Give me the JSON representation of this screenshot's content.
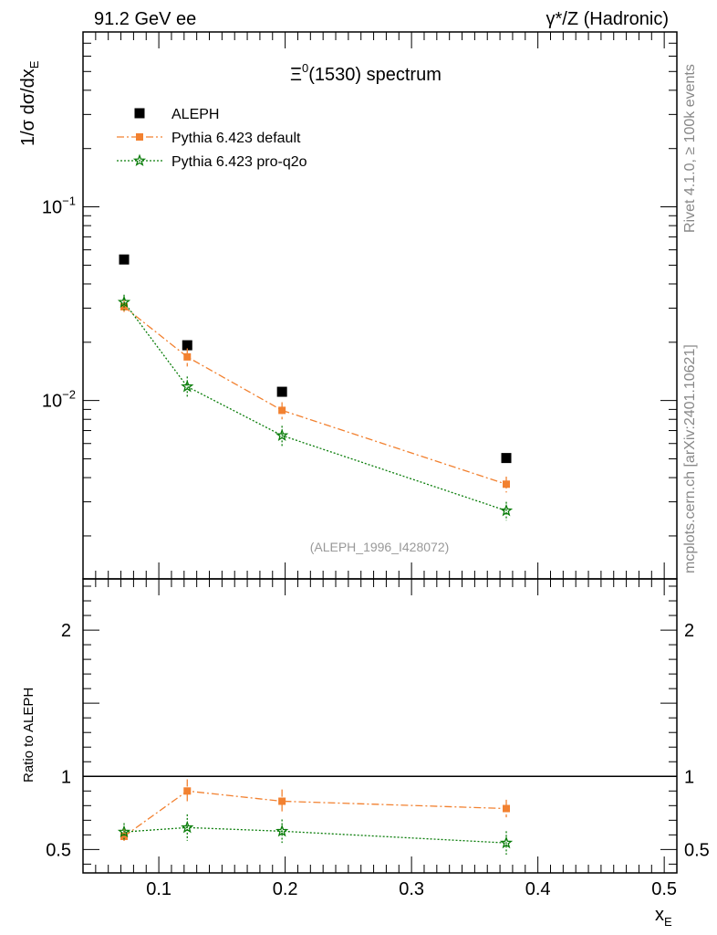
{
  "header": {
    "left": "91.2 GeV ee",
    "right": "γ*/Z (Hadronic)"
  },
  "side_labels": {
    "rivet": "Rivet 4.1.0, ≥ 100k events",
    "mcplots": "mcplots.cern.ch [arXiv:2401.10621]"
  },
  "colors": {
    "aleph": "#000000",
    "default": "#f28130",
    "proq2o": "#0a7d0a",
    "axis": "#000000"
  },
  "chart_data": [
    {
      "type": "scatter",
      "panel": "main",
      "title": "Ξ⁰(1530) spectrum",
      "title_parts": {
        "symbol": "Ξ",
        "sup": "0",
        "rest": "(1530) spectrum"
      },
      "xlabel": "x_E",
      "ylabel": "1/σ dσ/dx_E",
      "yscale": "log",
      "xlim": [
        0.04,
        0.51
      ],
      "ylim": [
        0.0012,
        0.8
      ],
      "y_ticks": [
        {
          "value": 0.1,
          "base": "10",
          "exp": "−1"
        },
        {
          "value": 0.01,
          "base": "10",
          "exp": "−2"
        }
      ],
      "analysis_id": "(ALEPH_1996_I428072)",
      "legend": {
        "placement": "top-left",
        "entries": [
          "ALEPH",
          "Pythia 6.423 default",
          "Pythia 6.423 pro-q2o"
        ]
      },
      "series": [
        {
          "name": "ALEPH",
          "marker": "square",
          "line": "none",
          "x": [
            0.0725,
            0.1225,
            0.1975,
            0.375
          ],
          "y": [
            0.0535,
            0.0193,
            0.0111,
            0.00505
          ],
          "yerr": [
            0.0015,
            0.0006,
            0.0004,
            0.0002
          ]
        },
        {
          "name": "Pythia 6.423 default",
          "marker": "square",
          "line": "dashdot",
          "x": [
            0.0725,
            0.1225,
            0.1975,
            0.375
          ],
          "y": [
            0.0305,
            0.0168,
            0.0089,
            0.0037
          ],
          "yerr": [
            0.0025,
            0.0018,
            0.0009,
            0.00035
          ]
        },
        {
          "name": "Pythia 6.423 pro-q2o",
          "marker": "star",
          "line": "dotted",
          "x": [
            0.0725,
            0.1225,
            0.1975,
            0.375
          ],
          "y": [
            0.0322,
            0.0118,
            0.0066,
            0.0027
          ],
          "yerr": [
            0.003,
            0.0015,
            0.0008,
            0.0003
          ]
        }
      ]
    },
    {
      "type": "scatter",
      "panel": "ratio",
      "ylabel": "Ratio to ALEPH",
      "xlabel": "x_E",
      "xlim": [
        0.04,
        0.51
      ],
      "ylim": [
        0.34,
        2.35
      ],
      "y_ticks": [
        0.5,
        1,
        2
      ],
      "y_tick_labels": [
        "0.5",
        "1",
        "2"
      ],
      "x_ticks": [
        0.1,
        0.2,
        0.3,
        0.4,
        0.5
      ],
      "x_tick_labels": [
        "0.1",
        "0.2",
        "0.3",
        "0.4",
        "0.5"
      ],
      "reference_line": 1,
      "series": [
        {
          "name": "Pythia 6.423 default",
          "x": [
            0.0725,
            0.1225,
            0.1975,
            0.375
          ],
          "y": [
            0.59,
            0.9,
            0.83,
            0.78
          ],
          "yerr": [
            0.05,
            0.08,
            0.08,
            0.06
          ]
        },
        {
          "name": "Pythia 6.423 pro-q2o",
          "x": [
            0.0725,
            0.1225,
            0.1975,
            0.375
          ],
          "y": [
            0.62,
            0.65,
            0.625,
            0.545
          ],
          "yerr": [
            0.06,
            0.09,
            0.08,
            0.08
          ]
        }
      ]
    }
  ]
}
